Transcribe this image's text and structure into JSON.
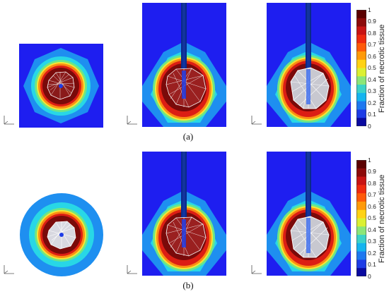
{
  "figure": {
    "captions": {
      "a": "(a)",
      "b": "(b)"
    },
    "colorbar": {
      "title": "Fraction of necrotic tissue",
      "ticks": [
        "1",
        "0.9",
        "0.8",
        "0.7",
        "0.6",
        "0.5",
        "0.4",
        "0.3",
        "0.2",
        "0.1",
        "0"
      ],
      "colors": [
        "#5a0000",
        "#8c0a0a",
        "#c81414",
        "#ee2a10",
        "#ff5a0a",
        "#ff9a0a",
        "#ffd214",
        "#dcf032",
        "#8ce678",
        "#3cd2c8",
        "#14b4f0",
        "#1e78f0",
        "#1e3ce6",
        "#0a0aa0"
      ]
    },
    "panel_colors": {
      "background": "#1e1ef0",
      "ring_outer": "#1e8ff0",
      "ring_cyan": "#28d7e6",
      "ring_green": "#6ee686",
      "ring_yellow": "#f7e632",
      "ring_orange": "#fa8c14",
      "ring_red": "#dc1e14",
      "core": "#7a0a0a",
      "probe": "#0a2a8a",
      "mesh": "#ffffff"
    }
  }
}
